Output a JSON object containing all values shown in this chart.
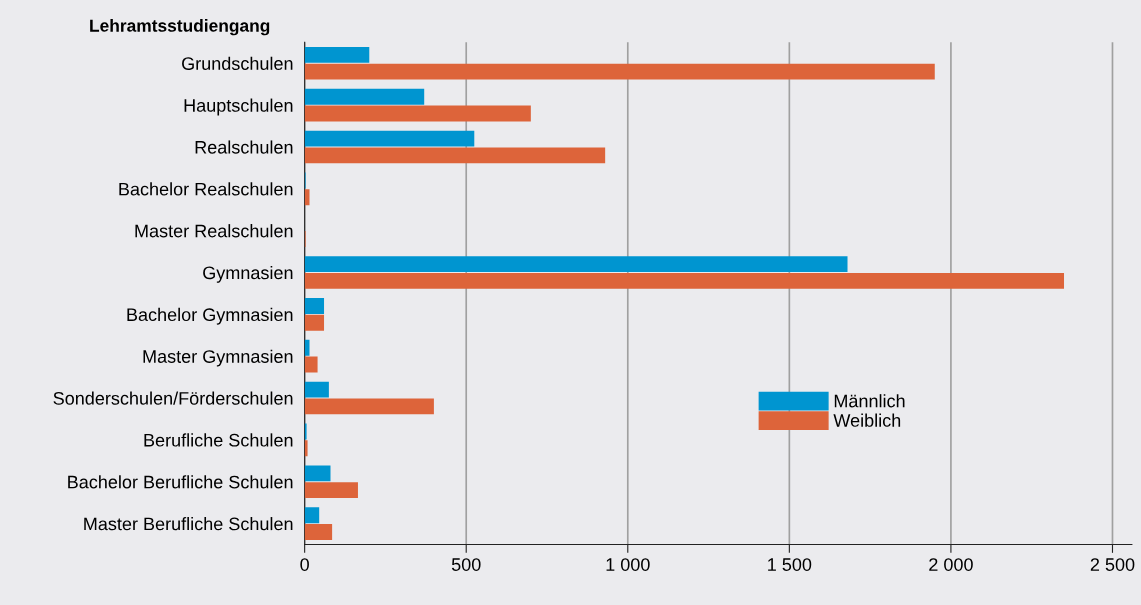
{
  "chart_data": {
    "type": "bar",
    "orientation": "horizontal",
    "ylabel": "Lehramtsstudiengang",
    "categories": [
      "Grundschulen",
      "Hauptschulen",
      "Realschulen",
      "Bachelor Realschulen",
      "Master Realschulen",
      "Gymnasien",
      "Bachelor Gymnasien",
      "Master Gymnasien",
      "Sonderschulen/Förderschulen",
      "Berufliche Schulen",
      "Bachelor Berufliche Schulen",
      "Master Berufliche Schulen"
    ],
    "series": [
      {
        "name": "Männlich",
        "color": "#0095d0",
        "values": [
          200,
          370,
          525,
          3,
          0,
          1680,
          60,
          15,
          75,
          6,
          80,
          45
        ]
      },
      {
        "name": "Weiblich",
        "color": "#dd643a",
        "values": [
          1950,
          700,
          930,
          15,
          3,
          2350,
          60,
          40,
          400,
          9,
          165,
          85
        ]
      }
    ],
    "xlim": [
      0,
      2560
    ],
    "xticks": [
      0,
      500,
      {
        "value": 1000,
        "label": "1 000"
      },
      {
        "value": 1500,
        "label": "1 500"
      },
      {
        "value": 2000,
        "label": "2 000"
      },
      {
        "value": 2500,
        "label": "2 500"
      }
    ],
    "grid": "x",
    "legend": "right"
  }
}
